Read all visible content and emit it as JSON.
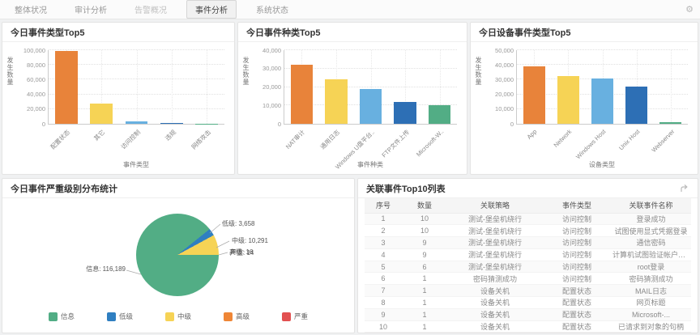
{
  "topbar": {
    "tabs": [
      {
        "label": "整体状况",
        "active": false,
        "muted": false
      },
      {
        "label": "审计分析",
        "active": false,
        "muted": false
      },
      {
        "label": "告警概况",
        "active": false,
        "muted": true
      },
      {
        "label": "事件分析",
        "active": true,
        "muted": false
      },
      {
        "label": "系统状态",
        "active": false,
        "muted": false
      }
    ],
    "settings_icon": "gear-icon"
  },
  "palette": [
    "#e8833a",
    "#f6d355",
    "#68b0e0",
    "#2d6fb5",
    "#52ad85"
  ],
  "severity_palette": [
    "#52ad85",
    "#2f7fc1",
    "#f6d355",
    "#ef8636",
    "#e25050"
  ],
  "chart_data": [
    {
      "type": "bar",
      "title": "今日事件类型Top5",
      "categories": [
        "配置状态",
        "其它",
        "访问控制",
        "违规",
        "网络攻击"
      ],
      "values": [
        98500,
        27000,
        3000,
        1200,
        400
      ],
      "xlabel": "事件类型",
      "ylabel": "发生数量",
      "ylim": [
        0,
        100000
      ],
      "ytick": 20000,
      "grid": true,
      "legend_position": "none"
    },
    {
      "type": "bar",
      "title": "今日事件种类Top5",
      "categories": [
        "NAT审计",
        "通用日志",
        "Windows U盘平台..",
        "FTP文件上传",
        "Microsoft-W.."
      ],
      "values": [
        32300,
        24300,
        19000,
        12000,
        10100
      ],
      "xlabel": "事件种类",
      "ylabel": "发生数量",
      "ylim": [
        0,
        40000
      ],
      "ytick": 10000,
      "grid": true,
      "legend_position": "none"
    },
    {
      "type": "bar",
      "title": "今日设备事件类型Top5",
      "categories": [
        "App",
        "Network",
        "Windows Host",
        "Unix Host",
        "Webserver"
      ],
      "values": [
        38800,
        32300,
        31000,
        25500,
        1000
      ],
      "xlabel": "设备类型",
      "ylabel": "发生数量",
      "ylim": [
        0,
        50000
      ],
      "ytick": 10000,
      "grid": true,
      "legend_position": "none"
    },
    {
      "type": "pie",
      "title": "今日事件严重级别分布统计",
      "labels": [
        "信息",
        "低级",
        "中级",
        "高级",
        "严重"
      ],
      "values": [
        116189,
        3658,
        10291,
        16,
        14
      ],
      "callouts": [
        "信息: 116,189",
        "低级: 3,658",
        "中级: 10,291",
        "高级: 16",
        "严重: 14"
      ],
      "legend_position": "bottom"
    }
  ],
  "table": {
    "title": "关联事件Top10列表",
    "icon": "export-icon",
    "headers": [
      "序号",
      "数量",
      "关联策略",
      "事件类型",
      "关联事件名称"
    ],
    "rows": [
      [
        "1",
        "10",
        "测试-堡垒机绕行",
        "访问控制",
        "登录成功"
      ],
      [
        "2",
        "10",
        "测试-堡垒机绕行",
        "访问控制",
        "试图使用显式凭据登录"
      ],
      [
        "3",
        "9",
        "测试-堡垒机绕行",
        "访问控制",
        "通信密码"
      ],
      [
        "4",
        "9",
        "测试-堡垒机绕行",
        "访问控制",
        "计算机试图验证帐户的..."
      ],
      [
        "5",
        "6",
        "测试-堡垒机绕行",
        "访问控制",
        "root登录"
      ],
      [
        "6",
        "1",
        "密码猜测成功",
        "访问控制",
        "密码猜测成功"
      ],
      [
        "7",
        "1",
        "设备关机",
        "配置状态",
        "MAIL日志"
      ],
      [
        "8",
        "1",
        "设备关机",
        "配置状态",
        "网页标题"
      ],
      [
        "9",
        "1",
        "设备关机",
        "配置状态",
        "Microsoft-..."
      ],
      [
        "10",
        "1",
        "设备关机",
        "配置状态",
        "已请求到对象的句柄"
      ]
    ]
  }
}
